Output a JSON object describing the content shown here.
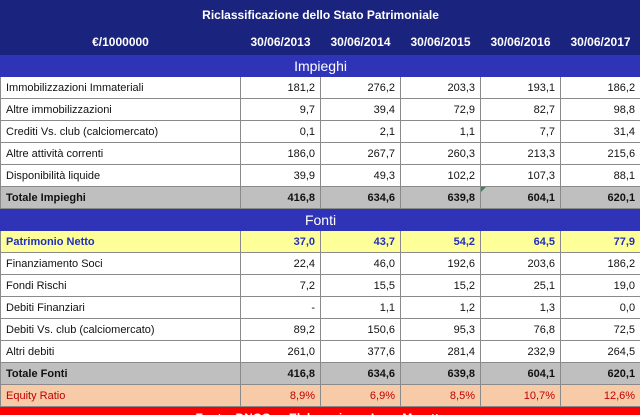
{
  "title": "Riclassificazione dello Stato Patrimoniale",
  "header": {
    "unit": "€/1000000",
    "years": [
      "30/06/2013",
      "30/06/2014",
      "30/06/2015",
      "30/06/2016",
      "30/06/2017"
    ]
  },
  "impieghi": {
    "section_label": "Impieghi",
    "rows": [
      {
        "label": "Immobilizzazioni Immateriali",
        "values": [
          "181,2",
          "276,2",
          "203,3",
          "193,1",
          "186,2"
        ]
      },
      {
        "label": "Altre immobilizzazioni",
        "values": [
          "9,7",
          "39,4",
          "72,9",
          "82,7",
          "98,8"
        ]
      },
      {
        "label": "Crediti Vs. club (calciomercato)",
        "values": [
          "0,1",
          "2,1",
          "1,1",
          "7,7",
          "31,4"
        ]
      },
      {
        "label": "Altre attività correnti",
        "values": [
          "186,0",
          "267,7",
          "260,3",
          "213,3",
          "215,6"
        ]
      },
      {
        "label": "Disponibilità liquide",
        "values": [
          "39,9",
          "49,3",
          "102,2",
          "107,3",
          "88,1"
        ]
      }
    ],
    "total": {
      "label": "Totale Impieghi",
      "values": [
        "416,8",
        "634,6",
        "639,8",
        "604,1",
        "620,1"
      ]
    }
  },
  "fonti": {
    "section_label": "Fonti",
    "equity": {
      "label": "Patrimonio Netto",
      "values": [
        "37,0",
        "43,7",
        "54,2",
        "64,5",
        "77,9"
      ]
    },
    "rows": [
      {
        "label": "Finanziamento Soci",
        "values": [
          "22,4",
          "46,0",
          "192,6",
          "203,6",
          "186,2"
        ]
      },
      {
        "label": "Fondi Rischi",
        "values": [
          "7,2",
          "15,5",
          "15,2",
          "25,1",
          "19,0"
        ]
      },
      {
        "label": "Debiti Finanziari",
        "values": [
          "-",
          "1,1",
          "1,2",
          "1,3",
          "0,0"
        ]
      },
      {
        "label": "Debiti Vs. club (calciomercato)",
        "values": [
          "89,2",
          "150,6",
          "95,3",
          "76,8",
          "72,5"
        ]
      },
      {
        "label": "Altri debiti",
        "values": [
          "261,0",
          "377,6",
          "281,4",
          "232,9",
          "264,5"
        ]
      }
    ],
    "total": {
      "label": "Totale Fonti",
      "values": [
        "416,8",
        "634,6",
        "639,8",
        "604,1",
        "620,1"
      ]
    }
  },
  "equity_ratio": {
    "label": "Equity Ratio",
    "values": [
      "8,9%",
      "6,9%",
      "8,5%",
      "10,7%",
      "12,6%"
    ]
  },
  "footer": {
    "source": "Fonte: DNCG",
    "author": "Elaborazione: Luca Marotta"
  },
  "colors": {
    "header_bg": "#1a237e",
    "section_bg": "#2f33b8",
    "total_bg": "#bfbfbf",
    "equity_bg": "#ffff99",
    "equity_text": "#1f2fbf",
    "ratio_bg": "#f8cba8",
    "ratio_text": "#c00000",
    "footer_bg": "#ff0000"
  }
}
